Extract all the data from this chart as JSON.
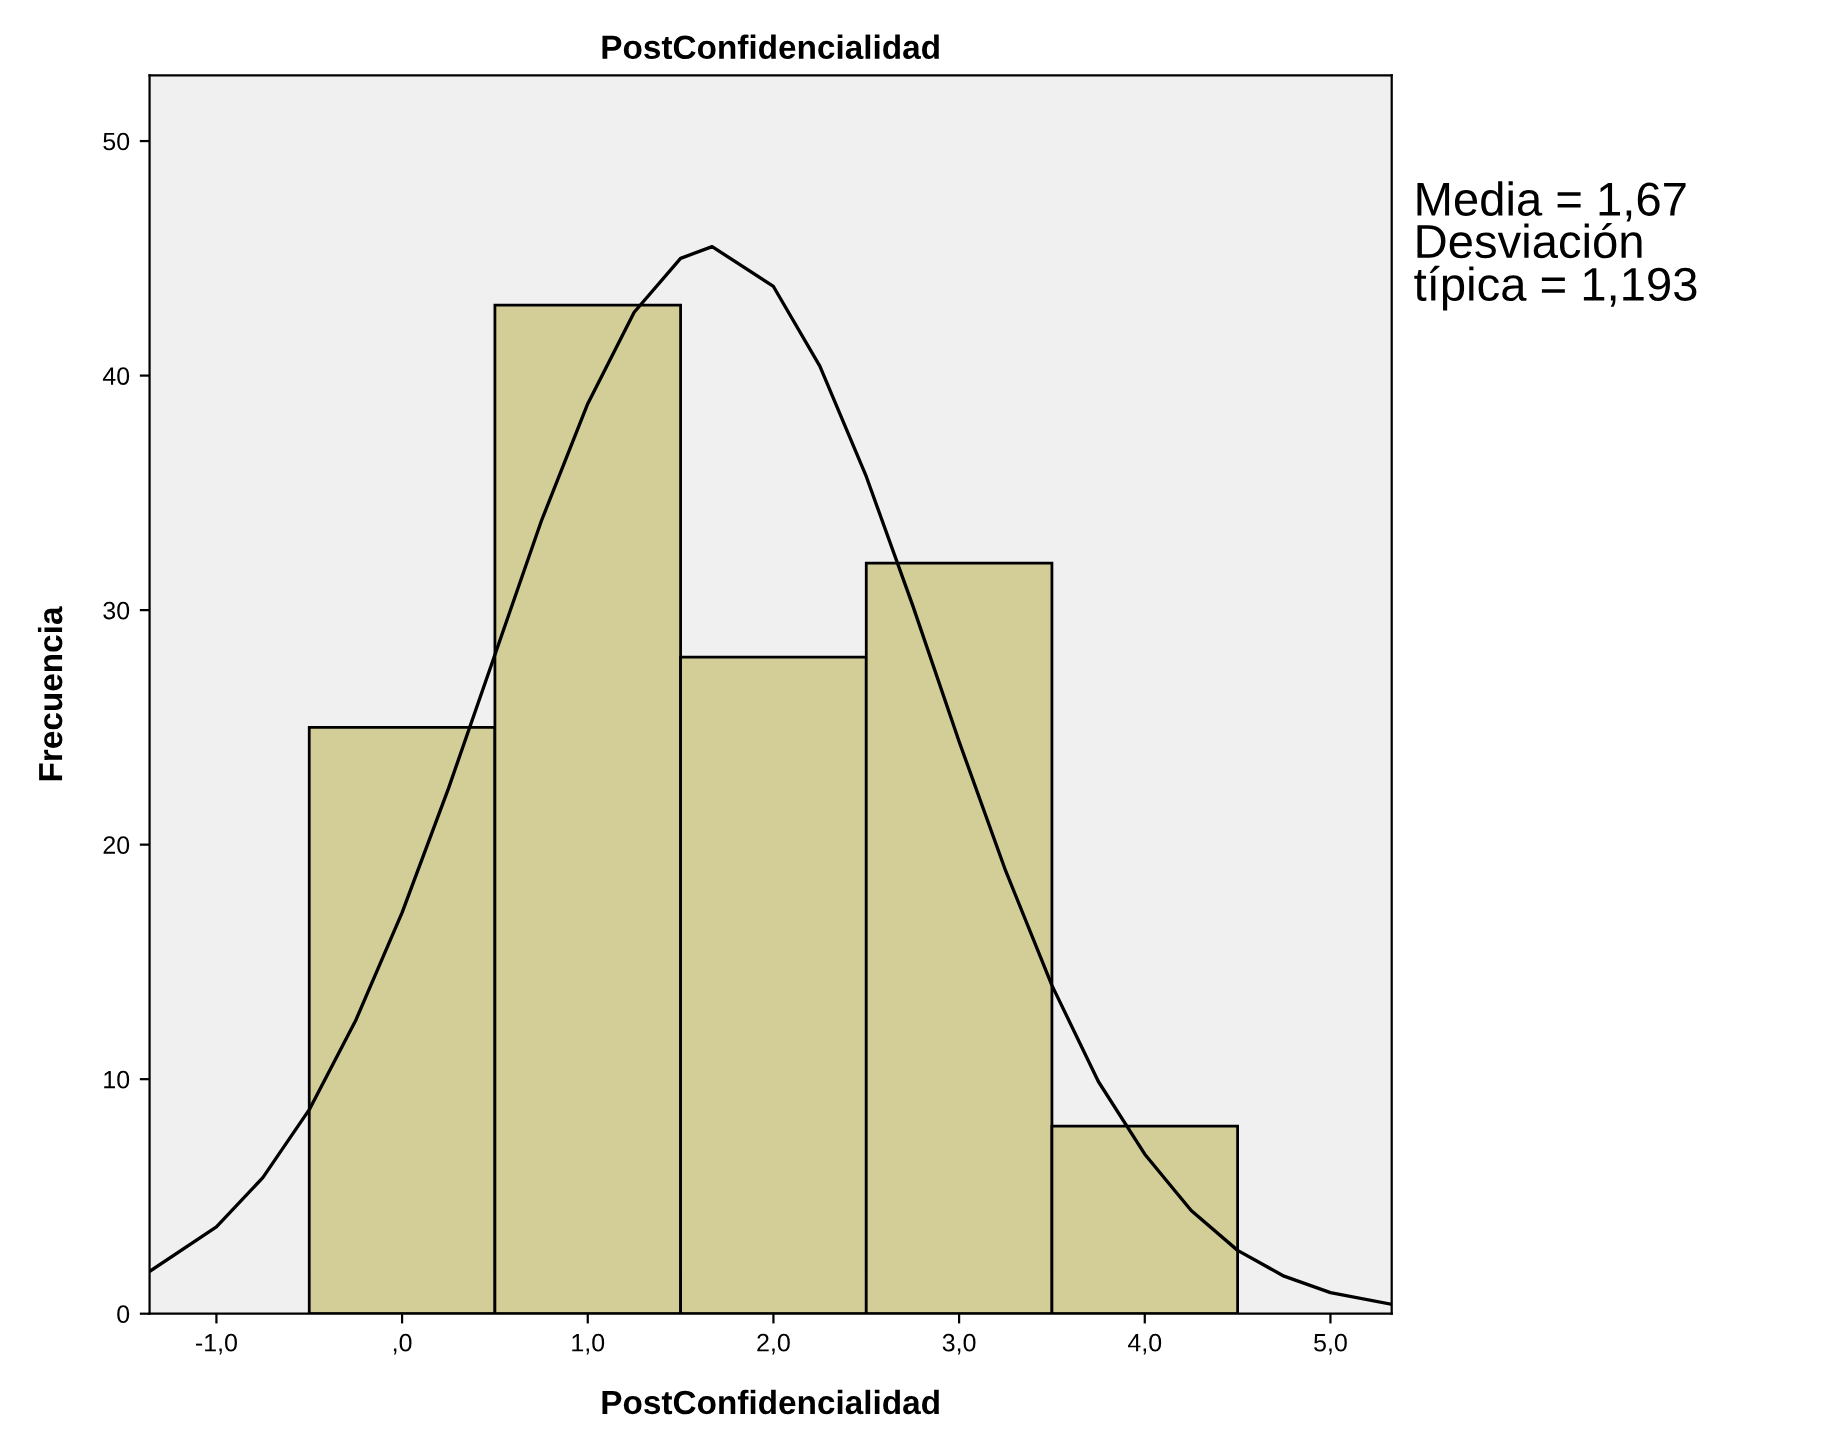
{
  "chart_data": {
    "type": "histogram",
    "title": "PostConfidencialidad",
    "xlabel": "PostConfidencialidad",
    "ylabel": "Frecuencia",
    "bins": [
      -0.5,
      0.5,
      1.5,
      2.5,
      3.5,
      4.5
    ],
    "values": [
      25,
      43,
      28,
      32,
      8
    ],
    "color": "#d3ce97",
    "series": [
      {
        "type": "line",
        "color": "#000000",
        "x": [
          -1.36,
          -1.0,
          -0.75,
          -0.5,
          -0.25,
          0,
          0.25,
          0.5,
          0.75,
          1.0,
          1.25,
          1.5,
          1.67,
          2.0,
          2.25,
          2.5,
          2.75,
          3.0,
          3.25,
          3.5,
          3.75,
          4.0,
          4.25,
          4.5,
          4.75,
          5.0,
          5.33
        ],
        "values": [
          1.8,
          3.7,
          5.8,
          8.7,
          12.5,
          17.1,
          22.4,
          28.1,
          33.8,
          38.8,
          42.7,
          45.0,
          45.5,
          43.8,
          40.4,
          35.7,
          30.2,
          24.4,
          18.9,
          14.0,
          9.9,
          6.8,
          4.4,
          2.7,
          1.6,
          0.9,
          0.4
        ]
      }
    ],
    "xlim": [
      -1.36,
      5.33
    ],
    "xticks": [
      {
        "value": -1,
        "label": "-1,0"
      },
      {
        "value": 0,
        "label": ",0"
      },
      {
        "value": 1,
        "label": "1,0"
      },
      {
        "value": 2,
        "label": "2,0"
      },
      {
        "value": 3,
        "label": "3,0"
      },
      {
        "value": 4,
        "label": "4,0"
      },
      {
        "value": 5,
        "label": "5,0"
      }
    ],
    "ylim": [
      0,
      52.8
    ],
    "yticks": [
      0,
      10,
      20,
      30,
      40,
      50
    ],
    "annotations": [
      "Media = 1,67\nDesviación\ntípica = 1,193"
    ]
  }
}
